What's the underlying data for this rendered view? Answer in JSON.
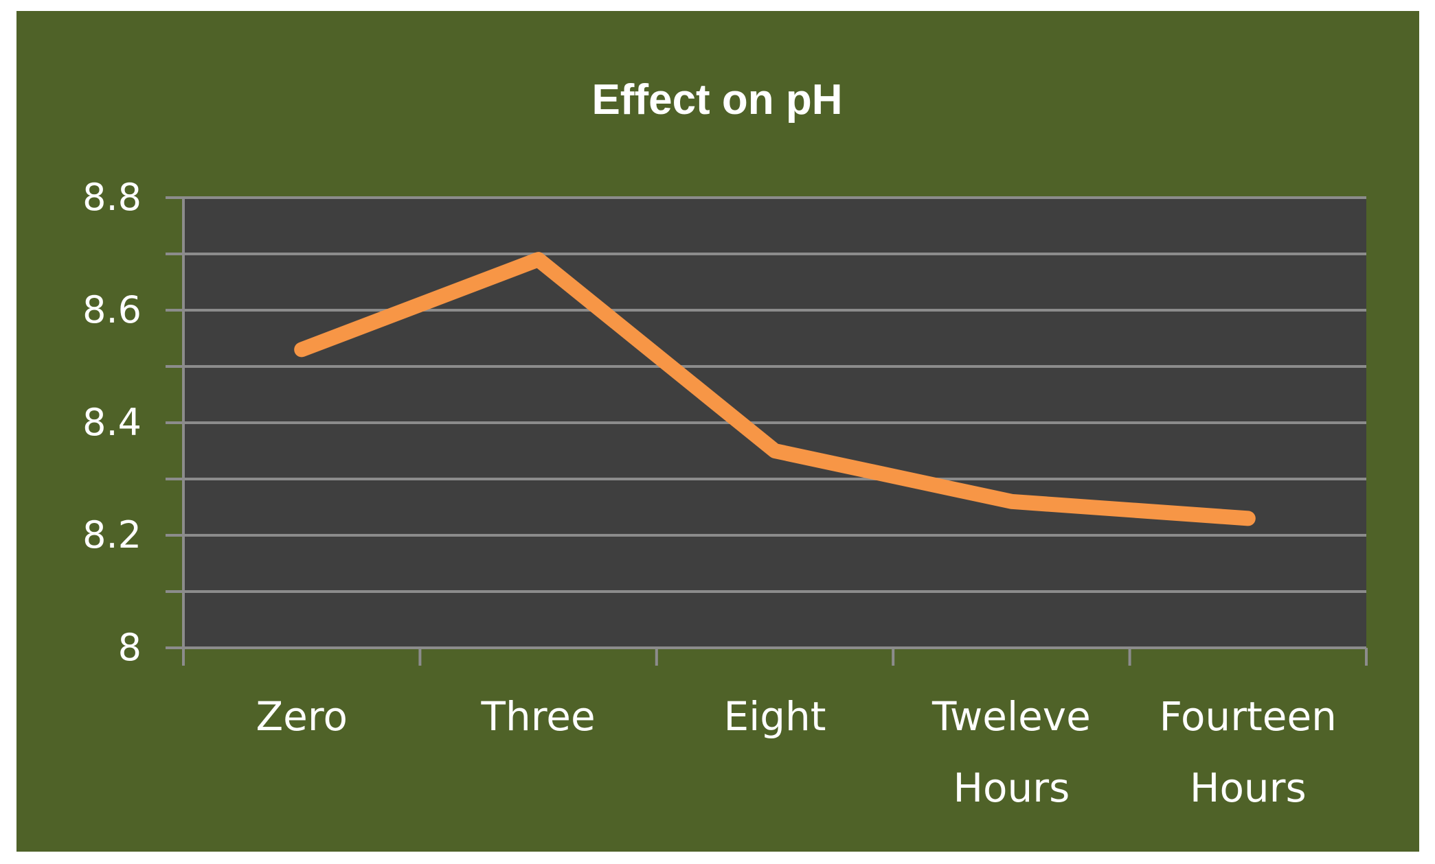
{
  "chart_data": {
    "type": "line",
    "title": "Effect on pH",
    "xlabel": "",
    "ylabel": "",
    "categories": [
      "Zero",
      "Three",
      "Eight",
      "Tweleve Hours",
      "Fourteen Hours"
    ],
    "series": [
      {
        "values": [
          8.53,
          8.69,
          8.35,
          8.26,
          8.23
        ]
      }
    ],
    "ylim": [
      8.0,
      8.8
    ],
    "y_tick_labels": [
      "8",
      "8.2",
      "8.4",
      "8.6",
      "8.8"
    ],
    "grid": true,
    "legend": "none",
    "colors": {
      "background": "#4f6228",
      "plot_area": "#3f3f3f",
      "line": "#f79646",
      "gridline": "#8c8c8c",
      "text": "#ffffff"
    }
  }
}
